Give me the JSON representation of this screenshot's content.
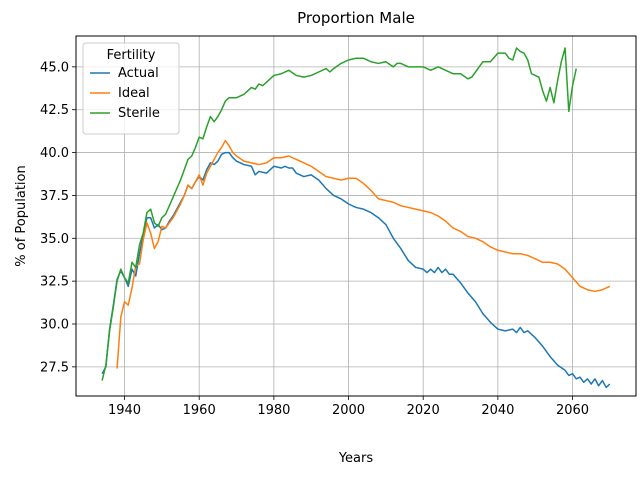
{
  "chart_data": {
    "type": "line",
    "title": "Proportion Male",
    "xlabel": "Years",
    "ylabel": "% of Population",
    "xlim": [
      1927,
      2077
    ],
    "ylim": [
      25.8,
      46.8
    ],
    "xticks": [
      1940,
      1960,
      1980,
      2000,
      2020,
      2040,
      2060
    ],
    "yticks": [
      27.5,
      30.0,
      32.5,
      35.0,
      37.5,
      40.0,
      42.5,
      45.0
    ],
    "ytick_labels": [
      "27.5",
      "30.0",
      "32.5",
      "35.0",
      "37.5",
      "40.0",
      "42.5",
      "45.0"
    ],
    "grid": true,
    "legend": {
      "title": "Fertility",
      "position": "top-left"
    },
    "series": [
      {
        "name": "Actual",
        "color": "#1f77b4",
        "points": [
          [
            1934,
            27.1
          ],
          [
            1935,
            27.5
          ],
          [
            1936,
            29.7
          ],
          [
            1937,
            31.1
          ],
          [
            1938,
            32.6
          ],
          [
            1939,
            33.1
          ],
          [
            1940,
            32.7
          ],
          [
            1941,
            32.2
          ],
          [
            1942,
            33.2
          ],
          [
            1943,
            32.8
          ],
          [
            1944,
            34.1
          ],
          [
            1945,
            35.2
          ],
          [
            1946,
            36.2
          ],
          [
            1947,
            36.2
          ],
          [
            1948,
            35.6
          ],
          [
            1949,
            35.8
          ],
          [
            1950,
            35.5
          ],
          [
            1951,
            35.6
          ],
          [
            1952,
            36.0
          ],
          [
            1953,
            36.3
          ],
          [
            1954,
            36.7
          ],
          [
            1955,
            37.1
          ],
          [
            1956,
            37.5
          ],
          [
            1957,
            38.1
          ],
          [
            1958,
            37.9
          ],
          [
            1959,
            38.3
          ],
          [
            1960,
            38.6
          ],
          [
            1961,
            38.4
          ],
          [
            1962,
            39.0
          ],
          [
            1963,
            39.4
          ],
          [
            1964,
            39.3
          ],
          [
            1965,
            39.5
          ],
          [
            1966,
            39.9
          ],
          [
            1967,
            40.0
          ],
          [
            1968,
            40.0
          ],
          [
            1969,
            39.7
          ],
          [
            1970,
            39.5
          ],
          [
            1972,
            39.3
          ],
          [
            1974,
            39.2
          ],
          [
            1975,
            38.7
          ],
          [
            1976,
            38.9
          ],
          [
            1978,
            38.8
          ],
          [
            1980,
            39.2
          ],
          [
            1982,
            39.1
          ],
          [
            1983,
            39.2
          ],
          [
            1984,
            39.1
          ],
          [
            1985,
            39.1
          ],
          [
            1986,
            38.8
          ],
          [
            1988,
            38.6
          ],
          [
            1990,
            38.7
          ],
          [
            1992,
            38.4
          ],
          [
            1994,
            37.9
          ],
          [
            1996,
            37.5
          ],
          [
            1998,
            37.3
          ],
          [
            2000,
            37.0
          ],
          [
            2002,
            36.8
          ],
          [
            2004,
            36.7
          ],
          [
            2006,
            36.5
          ],
          [
            2008,
            36.2
          ],
          [
            2010,
            35.8
          ],
          [
            2012,
            35.0
          ],
          [
            2014,
            34.4
          ],
          [
            2016,
            33.7
          ],
          [
            2018,
            33.3
          ],
          [
            2020,
            33.2
          ],
          [
            2021,
            33.0
          ],
          [
            2022,
            33.2
          ],
          [
            2023,
            33.0
          ],
          [
            2024,
            33.3
          ],
          [
            2025,
            33.0
          ],
          [
            2026,
            33.2
          ],
          [
            2027,
            32.9
          ],
          [
            2028,
            32.9
          ],
          [
            2030,
            32.4
          ],
          [
            2032,
            31.8
          ],
          [
            2034,
            31.3
          ],
          [
            2036,
            30.6
          ],
          [
            2038,
            30.1
          ],
          [
            2040,
            29.7
          ],
          [
            2042,
            29.6
          ],
          [
            2044,
            29.7
          ],
          [
            2045,
            29.5
          ],
          [
            2046,
            29.8
          ],
          [
            2047,
            29.5
          ],
          [
            2048,
            29.6
          ],
          [
            2050,
            29.2
          ],
          [
            2052,
            28.7
          ],
          [
            2054,
            28.1
          ],
          [
            2056,
            27.6
          ],
          [
            2058,
            27.3
          ],
          [
            2059,
            27.0
          ],
          [
            2060,
            27.1
          ],
          [
            2061,
            26.8
          ],
          [
            2062,
            26.9
          ],
          [
            2063,
            26.6
          ],
          [
            2064,
            26.8
          ],
          [
            2065,
            26.5
          ],
          [
            2066,
            26.8
          ],
          [
            2067,
            26.4
          ],
          [
            2068,
            26.7
          ],
          [
            2069,
            26.3
          ],
          [
            2070,
            26.5
          ]
        ]
      },
      {
        "name": "Ideal",
        "color": "#ff7f0e",
        "points": [
          [
            1938,
            27.4
          ],
          [
            1939,
            30.4
          ],
          [
            1940,
            31.3
          ],
          [
            1941,
            31.1
          ],
          [
            1942,
            32.1
          ],
          [
            1943,
            33.4
          ],
          [
            1944,
            33.5
          ],
          [
            1945,
            34.9
          ],
          [
            1946,
            35.9
          ],
          [
            1947,
            35.3
          ],
          [
            1948,
            34.4
          ],
          [
            1949,
            34.8
          ],
          [
            1950,
            35.7
          ],
          [
            1951,
            35.6
          ],
          [
            1952,
            35.9
          ],
          [
            1953,
            36.2
          ],
          [
            1954,
            36.6
          ],
          [
            1955,
            37.0
          ],
          [
            1956,
            37.5
          ],
          [
            1957,
            38.1
          ],
          [
            1958,
            37.9
          ],
          [
            1959,
            38.3
          ],
          [
            1960,
            38.7
          ],
          [
            1961,
            38.1
          ],
          [
            1962,
            38.8
          ],
          [
            1963,
            39.2
          ],
          [
            1964,
            39.6
          ],
          [
            1965,
            40.0
          ],
          [
            1966,
            40.3
          ],
          [
            1967,
            40.7
          ],
          [
            1968,
            40.4
          ],
          [
            1969,
            40.0
          ],
          [
            1970,
            39.8
          ],
          [
            1972,
            39.5
          ],
          [
            1974,
            39.4
          ],
          [
            1976,
            39.3
          ],
          [
            1978,
            39.4
          ],
          [
            1980,
            39.7
          ],
          [
            1982,
            39.7
          ],
          [
            1984,
            39.8
          ],
          [
            1986,
            39.6
          ],
          [
            1988,
            39.4
          ],
          [
            1990,
            39.2
          ],
          [
            1992,
            38.9
          ],
          [
            1994,
            38.6
          ],
          [
            1996,
            38.5
          ],
          [
            1998,
            38.4
          ],
          [
            2000,
            38.5
          ],
          [
            2002,
            38.5
          ],
          [
            2004,
            38.2
          ],
          [
            2006,
            37.8
          ],
          [
            2008,
            37.3
          ],
          [
            2010,
            37.2
          ],
          [
            2012,
            37.1
          ],
          [
            2014,
            36.9
          ],
          [
            2016,
            36.8
          ],
          [
            2018,
            36.7
          ],
          [
            2020,
            36.6
          ],
          [
            2022,
            36.5
          ],
          [
            2024,
            36.3
          ],
          [
            2026,
            36.0
          ],
          [
            2028,
            35.6
          ],
          [
            2030,
            35.4
          ],
          [
            2032,
            35.1
          ],
          [
            2034,
            35.0
          ],
          [
            2036,
            34.8
          ],
          [
            2038,
            34.5
          ],
          [
            2040,
            34.3
          ],
          [
            2042,
            34.2
          ],
          [
            2044,
            34.1
          ],
          [
            2046,
            34.1
          ],
          [
            2048,
            34.0
          ],
          [
            2050,
            33.8
          ],
          [
            2052,
            33.6
          ],
          [
            2054,
            33.6
          ],
          [
            2056,
            33.5
          ],
          [
            2058,
            33.2
          ],
          [
            2060,
            32.7
          ],
          [
            2062,
            32.2
          ],
          [
            2064,
            32.0
          ],
          [
            2066,
            31.9
          ],
          [
            2068,
            32.0
          ],
          [
            2070,
            32.2
          ]
        ]
      },
      {
        "name": "Sterile",
        "color": "#2ca02c",
        "points": [
          [
            1934,
            26.7
          ],
          [
            1935,
            27.6
          ],
          [
            1936,
            29.6
          ],
          [
            1937,
            31.0
          ],
          [
            1938,
            32.5
          ],
          [
            1939,
            33.2
          ],
          [
            1940,
            32.7
          ],
          [
            1941,
            32.4
          ],
          [
            1942,
            33.6
          ],
          [
            1943,
            33.3
          ],
          [
            1944,
            34.6
          ],
          [
            1945,
            35.3
          ],
          [
            1946,
            36.5
          ],
          [
            1947,
            36.7
          ],
          [
            1948,
            35.9
          ],
          [
            1949,
            35.7
          ],
          [
            1950,
            36.2
          ],
          [
            1951,
            36.4
          ],
          [
            1952,
            36.9
          ],
          [
            1953,
            37.4
          ],
          [
            1954,
            37.9
          ],
          [
            1955,
            38.4
          ],
          [
            1956,
            39.0
          ],
          [
            1957,
            39.6
          ],
          [
            1958,
            39.8
          ],
          [
            1959,
            40.3
          ],
          [
            1960,
            40.9
          ],
          [
            1961,
            40.8
          ],
          [
            1962,
            41.5
          ],
          [
            1963,
            42.1
          ],
          [
            1964,
            41.8
          ],
          [
            1965,
            42.1
          ],
          [
            1966,
            42.5
          ],
          [
            1967,
            43.0
          ],
          [
            1968,
            43.2
          ],
          [
            1970,
            43.2
          ],
          [
            1972,
            43.4
          ],
          [
            1974,
            43.8
          ],
          [
            1975,
            43.7
          ],
          [
            1976,
            44.0
          ],
          [
            1977,
            43.9
          ],
          [
            1978,
            44.1
          ],
          [
            1980,
            44.5
          ],
          [
            1982,
            44.6
          ],
          [
            1984,
            44.8
          ],
          [
            1986,
            44.5
          ],
          [
            1988,
            44.4
          ],
          [
            1990,
            44.5
          ],
          [
            1992,
            44.7
          ],
          [
            1994,
            44.9
          ],
          [
            1995,
            44.7
          ],
          [
            1996,
            44.9
          ],
          [
            1998,
            45.2
          ],
          [
            2000,
            45.4
          ],
          [
            2002,
            45.5
          ],
          [
            2004,
            45.5
          ],
          [
            2006,
            45.3
          ],
          [
            2008,
            45.2
          ],
          [
            2010,
            45.3
          ],
          [
            2012,
            45.0
          ],
          [
            2013,
            45.2
          ],
          [
            2014,
            45.2
          ],
          [
            2016,
            45.0
          ],
          [
            2018,
            45.0
          ],
          [
            2020,
            45.0
          ],
          [
            2022,
            44.8
          ],
          [
            2024,
            45.0
          ],
          [
            2026,
            44.8
          ],
          [
            2028,
            44.6
          ],
          [
            2030,
            44.6
          ],
          [
            2032,
            44.3
          ],
          [
            2033,
            44.4
          ],
          [
            2034,
            44.7
          ],
          [
            2035,
            45.0
          ],
          [
            2036,
            45.3
          ],
          [
            2038,
            45.3
          ],
          [
            2040,
            45.8
          ],
          [
            2042,
            45.8
          ],
          [
            2043,
            45.5
          ],
          [
            2044,
            45.4
          ],
          [
            2045,
            46.1
          ],
          [
            2046,
            45.9
          ],
          [
            2047,
            45.8
          ],
          [
            2048,
            45.4
          ],
          [
            2049,
            44.6
          ],
          [
            2050,
            44.5
          ],
          [
            2051,
            44.4
          ],
          [
            2052,
            43.6
          ],
          [
            2053,
            43.0
          ],
          [
            2054,
            43.8
          ],
          [
            2055,
            42.9
          ],
          [
            2056,
            44.2
          ],
          [
            2057,
            45.3
          ],
          [
            2058,
            46.1
          ],
          [
            2059,
            42.4
          ],
          [
            2060,
            43.9
          ],
          [
            2061,
            44.9
          ]
        ]
      }
    ]
  }
}
